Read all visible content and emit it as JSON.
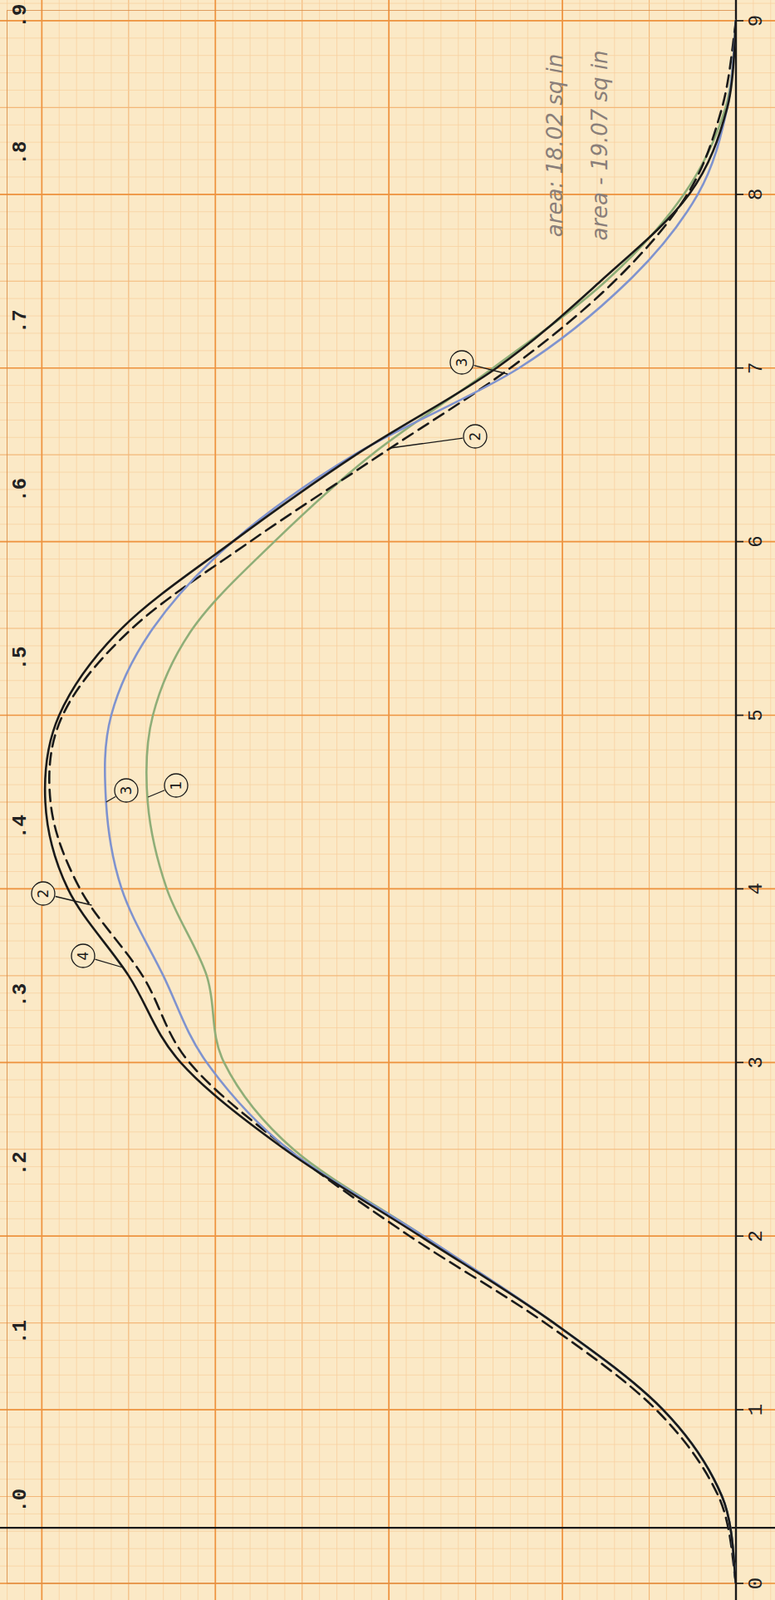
{
  "chart_data": {
    "type": "line",
    "x": [
      0,
      0.5,
      1,
      1.5,
      2,
      2.5,
      3,
      3.5,
      4,
      4.5,
      5,
      5.5,
      6,
      6.5,
      7,
      7.5,
      8,
      8.5,
      9
    ],
    "xlim": [
      0,
      9.06
    ],
    "xticks": [
      0,
      1,
      2,
      3,
      4,
      5,
      6,
      7,
      8,
      9
    ],
    "x2lim": [
      -0.033,
      0.901
    ],
    "x2ticks": [
      {
        "value": 0,
        "label": ".0"
      },
      {
        "value": 0.1,
        "label": ".1"
      },
      {
        "value": 0.2,
        "label": ".2"
      },
      {
        "value": 0.3,
        "label": ".3"
      },
      {
        "value": 0.4,
        "label": ".4"
      },
      {
        "value": 0.5,
        "label": ".5"
      },
      {
        "value": 0.6,
        "label": ".6"
      },
      {
        "value": 0.7,
        "label": ".7"
      },
      {
        "value": 0.8,
        "label": ".8"
      },
      {
        "value": 0.9,
        "label": ".9"
      }
    ],
    "ylim": [
      0,
      4.2
    ],
    "yticks": [
      0,
      1,
      2,
      3,
      4
    ],
    "tick_labels": "x",
    "grid": true,
    "annotations": [
      "area - 19.07 sq in",
      "area: 18.02 sq in"
    ],
    "series": [
      {
        "name": "1",
        "color": "#8fae78",
        "line_style": "solid",
        "values": [
          0,
          0.08,
          0.42,
          1.05,
          1.8,
          2.55,
          2.95,
          3.05,
          3.28,
          3.39,
          3.36,
          3.13,
          2.66,
          2.1,
          1.4,
          0.75,
          0.3,
          0.06,
          0
        ]
      },
      {
        "name": "2",
        "color": "#1a1a1a",
        "line_style": "dashed",
        "values": [
          0,
          0.1,
          0.46,
          1.1,
          1.88,
          2.58,
          3.15,
          3.42,
          3.78,
          3.95,
          3.88,
          3.48,
          2.8,
          2.05,
          1.3,
          0.7,
          0.28,
          0.08,
          0
        ]
      },
      {
        "name": "3",
        "color": "#7f93cf",
        "line_style": "solid",
        "values": [
          0,
          0.08,
          0.42,
          1.05,
          1.8,
          2.58,
          3.05,
          3.3,
          3.54,
          3.63,
          3.6,
          3.36,
          2.9,
          2.2,
          1.25,
          0.62,
          0.22,
          0.05,
          0
        ]
      },
      {
        "name": "4",
        "color": "#1a1a1a",
        "line_style": "solid",
        "values": [
          0,
          0.08,
          0.42,
          1.05,
          1.82,
          2.6,
          3.2,
          3.5,
          3.85,
          3.98,
          3.9,
          3.54,
          2.9,
          2.19,
          1.38,
          0.78,
          0.27,
          0.05,
          0
        ]
      }
    ]
  }
}
